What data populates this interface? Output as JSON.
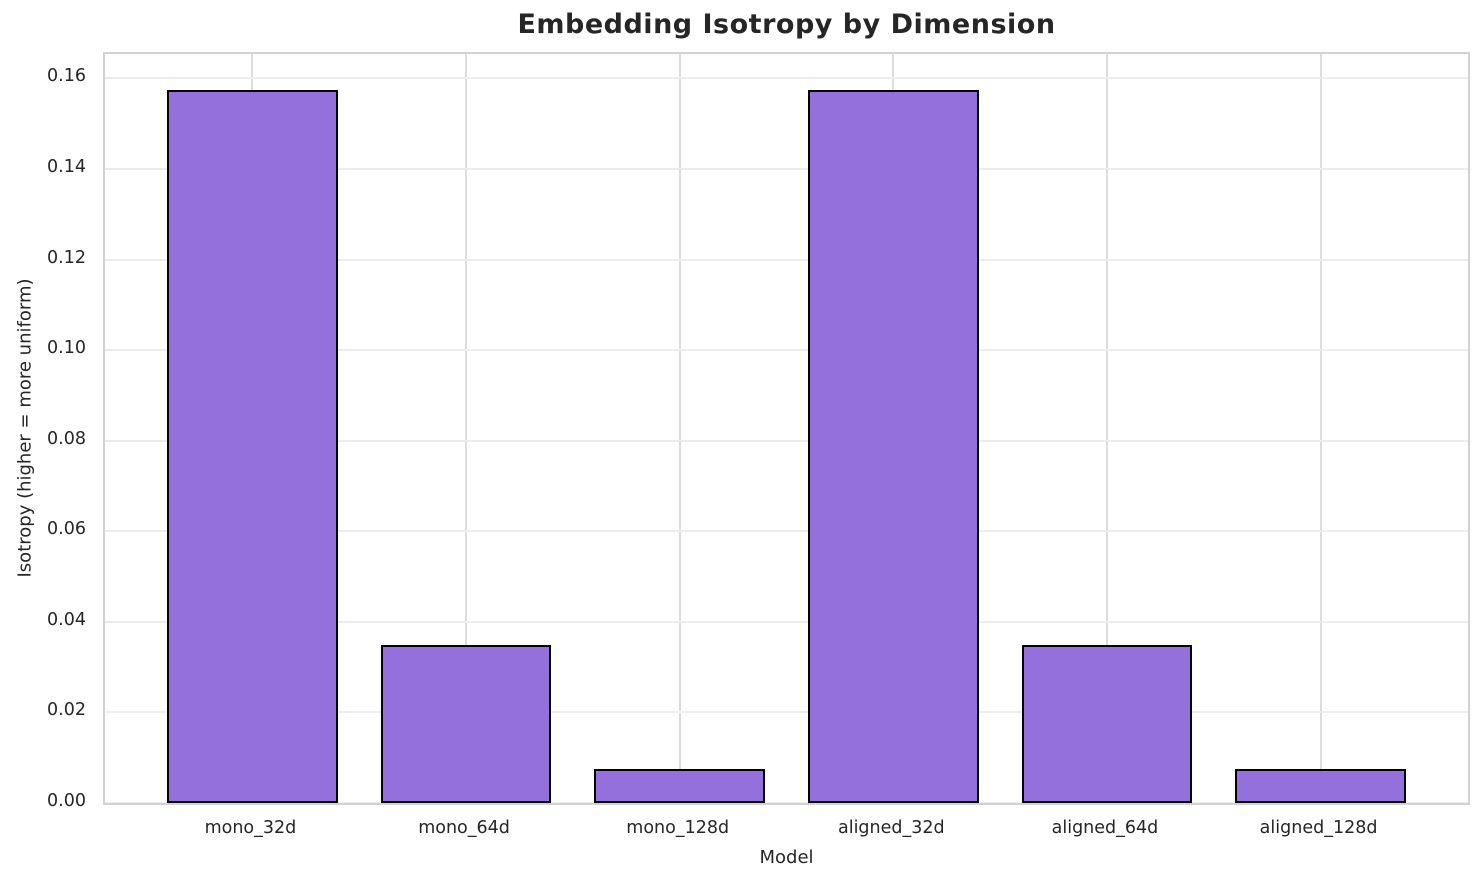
{
  "chart_data": {
    "type": "bar",
    "title": "Embedding Isotropy by Dimension",
    "xlabel": "Model",
    "ylabel": "Isotropy (higher = more uniform)",
    "categories": [
      "mono_32d",
      "mono_64d",
      "mono_128d",
      "aligned_32d",
      "aligned_64d",
      "aligned_128d"
    ],
    "values": [
      0.1575,
      0.035,
      0.0075,
      0.1575,
      0.035,
      0.0075
    ],
    "ytick_values": [
      0.0,
      0.02,
      0.04,
      0.06,
      0.08,
      0.1,
      0.12,
      0.14,
      0.16
    ],
    "ytick_labels": [
      "0.00",
      "0.02",
      "0.04",
      "0.06",
      "0.08",
      "0.10",
      "0.12",
      "0.14",
      "0.16"
    ],
    "ylim": [
      0,
      0.1654
    ],
    "xlim": [
      -0.69,
      5.69
    ],
    "bar_width_units": 0.8,
    "grid": "on",
    "legend": "none",
    "colors": {
      "bar_fill": "#9370DB",
      "bar_edge": "#000000",
      "hgrid": "#ececec",
      "vgrid": "#dcdcdc",
      "spine": "#d2d2d2",
      "text": "#262626",
      "background": "#ffffff"
    }
  }
}
